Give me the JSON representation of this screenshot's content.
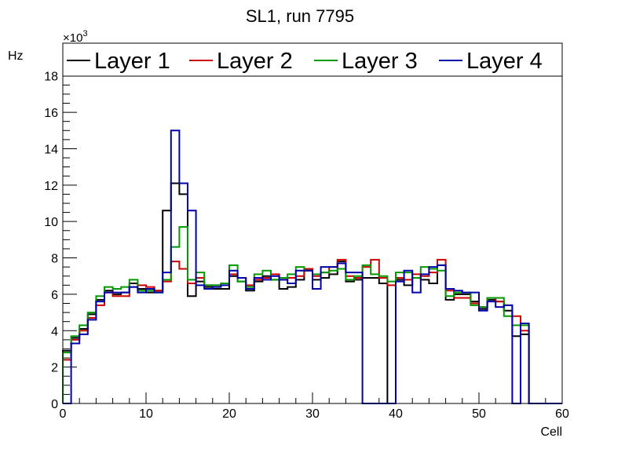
{
  "chart_data": {
    "type": "histogram",
    "title": "SL1, run 7795",
    "xlabel": "Cell",
    "ylabel": "Hz",
    "y_exponent_label": "×10",
    "y_exponent_power": "3",
    "xlim": [
      0,
      60
    ],
    "ylim": [
      0,
      19.8
    ],
    "bin_edges": [
      0,
      1,
      2,
      3,
      4,
      5,
      6,
      7,
      8,
      9,
      10,
      11,
      12,
      13,
      14,
      15,
      16,
      17,
      18,
      19,
      20,
      21,
      22,
      23,
      24,
      25,
      26,
      27,
      28,
      29,
      30,
      31,
      32,
      33,
      34,
      35,
      36,
      37,
      38,
      39,
      40,
      41,
      42,
      43,
      44,
      45,
      46,
      47,
      48,
      49,
      50,
      51,
      52,
      53,
      54,
      55,
      56,
      57,
      58,
      59,
      60
    ],
    "x_ticks": [
      0,
      10,
      20,
      30,
      40,
      50,
      60
    ],
    "x_tick_labels": [
      "0",
      "10",
      "20",
      "30",
      "40",
      "50",
      "60"
    ],
    "y_ticks": [
      0,
      2,
      4,
      6,
      8,
      10,
      12,
      14,
      16,
      18
    ],
    "y_tick_labels": [
      "0",
      "2",
      "4",
      "6",
      "8",
      "10",
      "12",
      "14",
      "16",
      "18"
    ],
    "legend_position": "top",
    "series": [
      {
        "name": "Layer 1",
        "color": "#000000",
        "values": [
          2.9,
          3.6,
          4.1,
          4.9,
          5.7,
          6.2,
          6.0,
          6.1,
          6.6,
          6.3,
          6.1,
          6.2,
          10.6,
          12.1,
          11.5,
          5.9,
          6.7,
          6.4,
          6.3,
          6.3,
          7.0,
          6.7,
          6.2,
          6.7,
          7.0,
          6.8,
          6.3,
          6.4,
          6.8,
          7.3,
          6.8,
          6.9,
          7.1,
          7.8,
          6.7,
          6.8,
          6.9,
          6.9,
          6.6,
          0,
          6.8,
          6.5,
          6.9,
          6.8,
          6.6,
          7.6,
          5.7,
          6.0,
          6.0,
          5.6,
          5.2,
          5.7,
          5.6,
          5.1,
          3.7,
          3.8,
          0,
          0,
          0,
          0
        ]
      },
      {
        "name": "Layer 2",
        "color": "#cc0000",
        "values": [
          2.4,
          3.5,
          4.0,
          4.7,
          5.4,
          6.1,
          5.9,
          5.9,
          6.4,
          6.5,
          6.4,
          6.2,
          6.7,
          7.8,
          7.4,
          6.6,
          6.9,
          6.5,
          6.5,
          6.6,
          7.1,
          6.9,
          6.5,
          6.8,
          6.9,
          7.1,
          6.8,
          6.9,
          7.0,
          7.4,
          7.0,
          7.2,
          7.5,
          7.9,
          7.0,
          6.9,
          7.5,
          7.9,
          6.9,
          6.5,
          6.9,
          6.8,
          7.1,
          7.0,
          7.2,
          7.9,
          6.2,
          5.8,
          5.8,
          5.5,
          5.3,
          5.8,
          5.6,
          5.4,
          4.8,
          4.0,
          0,
          0,
          0,
          0
        ]
      },
      {
        "name": "Layer 3",
        "color": "#009900",
        "values": [
          2.8,
          3.7,
          4.3,
          5.0,
          5.9,
          6.4,
          6.3,
          6.4,
          6.8,
          6.2,
          6.2,
          6.1,
          6.8,
          8.6,
          9.7,
          6.8,
          7.2,
          6.5,
          6.5,
          6.6,
          7.6,
          6.7,
          6.4,
          7.1,
          7.3,
          6.8,
          6.9,
          7.1,
          7.5,
          7.3,
          7.1,
          7.2,
          7.3,
          7.4,
          6.8,
          7.0,
          7.6,
          7.1,
          7.0,
          6.7,
          7.2,
          7.2,
          6.9,
          7.5,
          7.4,
          7.3,
          5.9,
          6.1,
          6.1,
          5.4,
          5.3,
          5.8,
          5.8,
          4.8,
          4.3,
          4.3,
          0,
          0,
          0,
          0
        ]
      },
      {
        "name": "Layer 4",
        "color": "#0000aa",
        "values": [
          0,
          3.3,
          3.8,
          4.6,
          5.6,
          6.1,
          6.1,
          6.1,
          6.4,
          6.1,
          6.3,
          6.1,
          7.2,
          15.0,
          12.1,
          10.6,
          6.5,
          6.3,
          6.4,
          6.5,
          7.3,
          6.9,
          6.3,
          6.9,
          6.8,
          7.0,
          6.8,
          6.6,
          7.3,
          7.3,
          6.3,
          7.5,
          7.5,
          7.7,
          7.2,
          7.2,
          0,
          0,
          0,
          0,
          6.7,
          7.3,
          6.1,
          7.1,
          7.5,
          7.6,
          6.3,
          6.2,
          6.1,
          6.1,
          5.1,
          5.6,
          5.3,
          5.4,
          0,
          4.4,
          0,
          0,
          0,
          0
        ]
      }
    ]
  }
}
